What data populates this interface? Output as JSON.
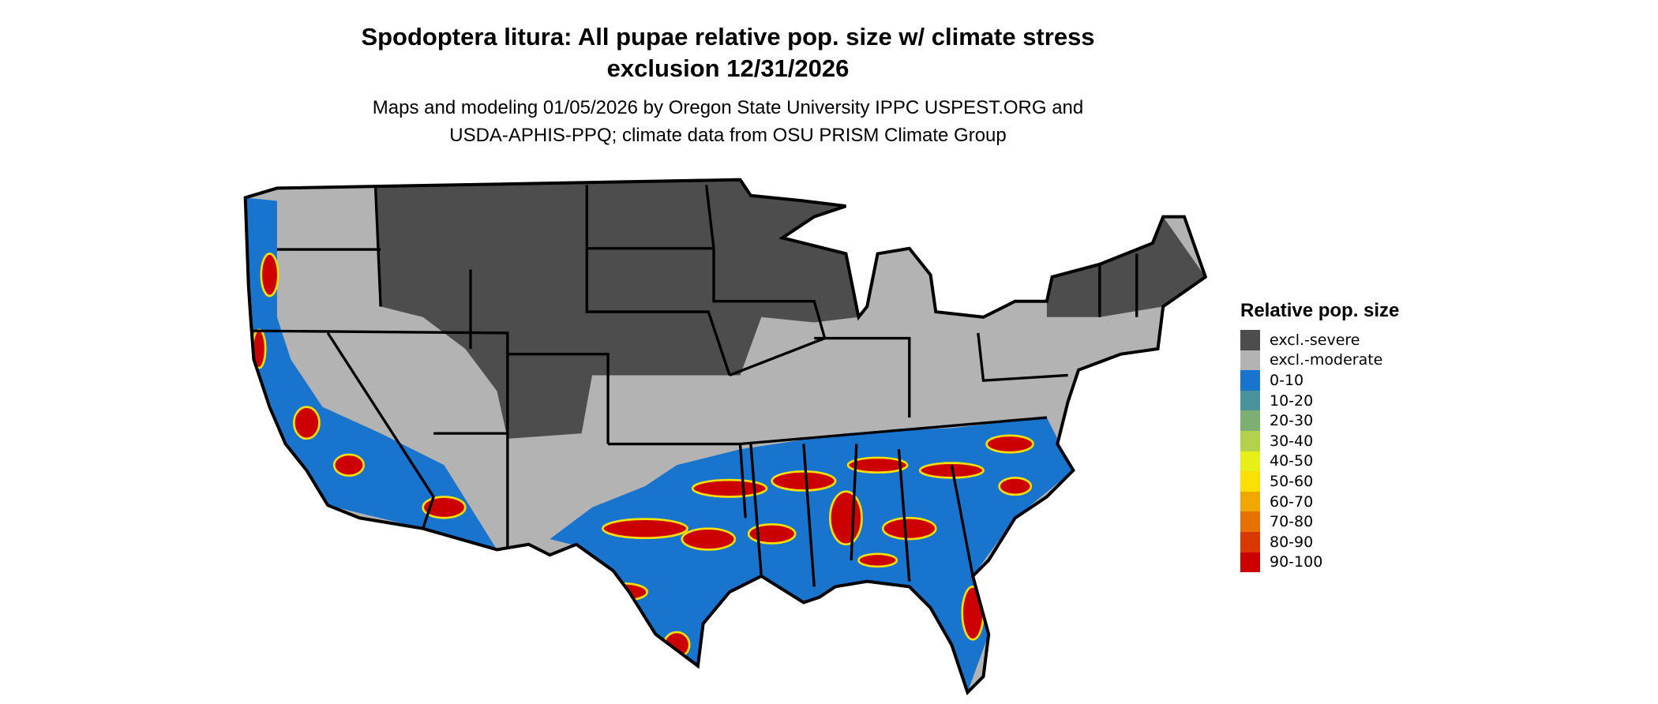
{
  "title_line1": "Spodoptera litura: All pupae relative pop. size w/ climate stress",
  "title_line2": "exclusion 12/31/2026",
  "subtitle_line1": "Maps and modeling 01/05/2026 by Oregon State University IPPC USPEST.ORG and",
  "subtitle_line2": "USDA-APHIS-PPQ; climate data from OSU PRISM Climate Group",
  "legend": {
    "title": "Relative pop. size",
    "items": [
      {
        "label": "excl.-severe",
        "color": "#4d4d4d"
      },
      {
        "label": "excl.-moderate",
        "color": "#b3b3b3"
      },
      {
        "label": "0-10",
        "color": "#1874cd"
      },
      {
        "label": "10-20",
        "color": "#4a929c"
      },
      {
        "label": "20-30",
        "color": "#7daf73"
      },
      {
        "label": "30-40",
        "color": "#b3d14a"
      },
      {
        "label": "40-50",
        "color": "#e6f018"
      },
      {
        "label": "50-60",
        "color": "#f9e000"
      },
      {
        "label": "60-70",
        "color": "#f0a800"
      },
      {
        "label": "70-80",
        "color": "#e67000"
      },
      {
        "label": "80-90",
        "color": "#d93800"
      },
      {
        "label": "90-100",
        "color": "#cc0000"
      }
    ]
  }
}
